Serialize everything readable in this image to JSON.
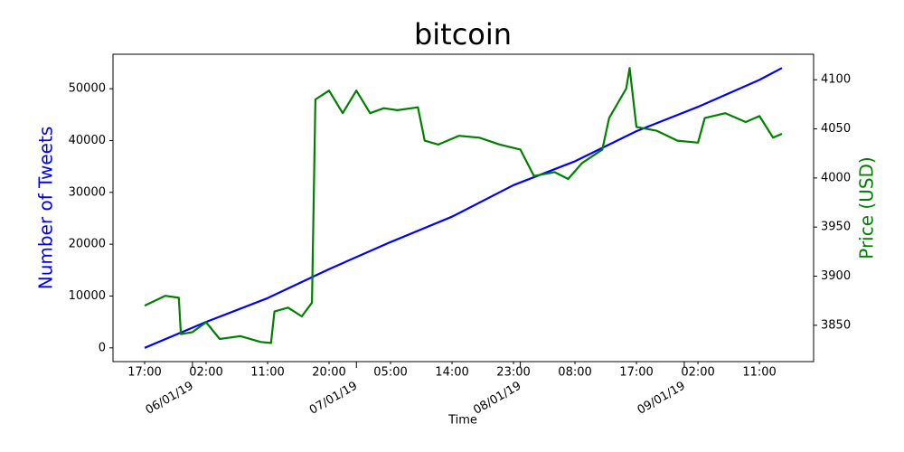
{
  "chart_data": {
    "type": "line",
    "title": "bitcoin",
    "xlabel": "Time",
    "ylabel": "Number of Tweets",
    "y2label": "Price (USD)",
    "ylabel_color": "#0000ff",
    "y2label_color": "#008000",
    "xlim": [
      "05/01/19 12:22",
      "09/01/19 18:56"
    ],
    "xticks": [
      {
        "value": "06/01/19 00:00",
        "label": "06/01/19"
      },
      {
        "value": "07/01/19 00:00",
        "label": "07/01/19"
      },
      {
        "value": "08/01/19 00:00",
        "label": "08/01/19"
      },
      {
        "value": "09/01/19 00:00",
        "label": "09/01/19"
      }
    ],
    "xminorticks": [
      {
        "value": "05/01/19 17:00",
        "label": "17:00"
      },
      {
        "value": "06/01/19 02:00",
        "label": "02:00"
      },
      {
        "value": "06/01/19 11:00",
        "label": "11:00"
      },
      {
        "value": "06/01/19 20:00",
        "label": "20:00"
      },
      {
        "value": "07/01/19 05:00",
        "label": "05:00"
      },
      {
        "value": "07/01/19 14:00",
        "label": "14:00"
      },
      {
        "value": "07/01/19 23:00",
        "label": "23:00"
      },
      {
        "value": "08/01/19 08:00",
        "label": "08:00"
      },
      {
        "value": "08/01/19 17:00",
        "label": "17:00"
      },
      {
        "value": "09/01/19 02:00",
        "label": "02:00"
      },
      {
        "value": "09/01/19 11:00",
        "label": "11:00"
      }
    ],
    "ylim": [
      -2650,
      56650
    ],
    "yticks": [
      0,
      10000,
      20000,
      30000,
      40000,
      50000
    ],
    "y2lim": [
      3813,
      4126
    ],
    "y2ticks": [
      3850,
      3900,
      3950,
      4000,
      4050,
      4100
    ],
    "series": [
      {
        "color": "#0000ff",
        "x": [
          "05/01/19 17:00",
          "06/01/19 02:00",
          "06/01/19 11:00",
          "06/01/19 20:00",
          "07/01/19 05:00",
          "07/01/19 14:00",
          "07/01/19 23:00",
          "08/01/19 08:00",
          "08/01/19 17:00",
          "09/01/19 02:00",
          "09/01/19 11:00",
          "09/01/19 14:18"
        ],
        "values": [
          0,
          5000,
          9600,
          15200,
          20400,
          25300,
          31400,
          36000,
          41800,
          46500,
          51700,
          54000
        ]
      },
      {
        "color": "#008000",
        "axis": "y2",
        "x": [
          "05/01/19 17:00",
          "05/01/19 20:00",
          "05/01/19 22:00",
          "05/01/19 22:18",
          "06/01/19 00:00",
          "06/01/19 02:00",
          "06/01/19 04:00",
          "06/01/19 07:00",
          "06/01/19 10:00",
          "06/01/19 11:30",
          "06/01/19 12:00",
          "06/01/19 14:00",
          "06/01/19 16:00",
          "06/01/19 17:30",
          "06/01/19 18:00",
          "06/01/19 20:00",
          "06/01/19 22:00",
          "07/01/19 00:00",
          "07/01/19 02:00",
          "07/01/19 04:00",
          "07/01/19 06:00",
          "07/01/19 09:00",
          "07/01/19 10:00",
          "07/01/19 12:00",
          "07/01/19 15:00",
          "07/01/19 18:00",
          "07/01/19 21:00",
          "08/01/19 00:00",
          "08/01/19 02:00",
          "08/01/19 05:00",
          "08/01/19 07:00",
          "08/01/19 09:00",
          "08/01/19 12:00",
          "08/01/19 13:00",
          "08/01/19 15:30",
          "08/01/19 16:00",
          "08/01/19 17:00",
          "08/01/19 20:00",
          "08/01/19 23:00",
          "09/01/19 02:00",
          "09/01/19 03:00",
          "09/01/19 06:00",
          "09/01/19 09:00",
          "09/01/19 11:00",
          "09/01/19 13:00",
          "09/01/19 14:18"
        ],
        "values": [
          3870,
          3880,
          3878,
          3841,
          3843,
          3853,
          3836,
          3839,
          3833,
          3832,
          3864,
          3868,
          3859,
          3873,
          4080,
          4089,
          4066,
          4089,
          4066,
          4071,
          4069,
          4072,
          4038,
          4034,
          4043,
          4041,
          4034,
          4029,
          4002,
          4006,
          3999,
          4015,
          4029,
          4061,
          4091,
          4112,
          4052,
          4048,
          4038,
          4036,
          4061,
          4066,
          4057,
          4063,
          4041,
          4045
        ]
      }
    ]
  }
}
